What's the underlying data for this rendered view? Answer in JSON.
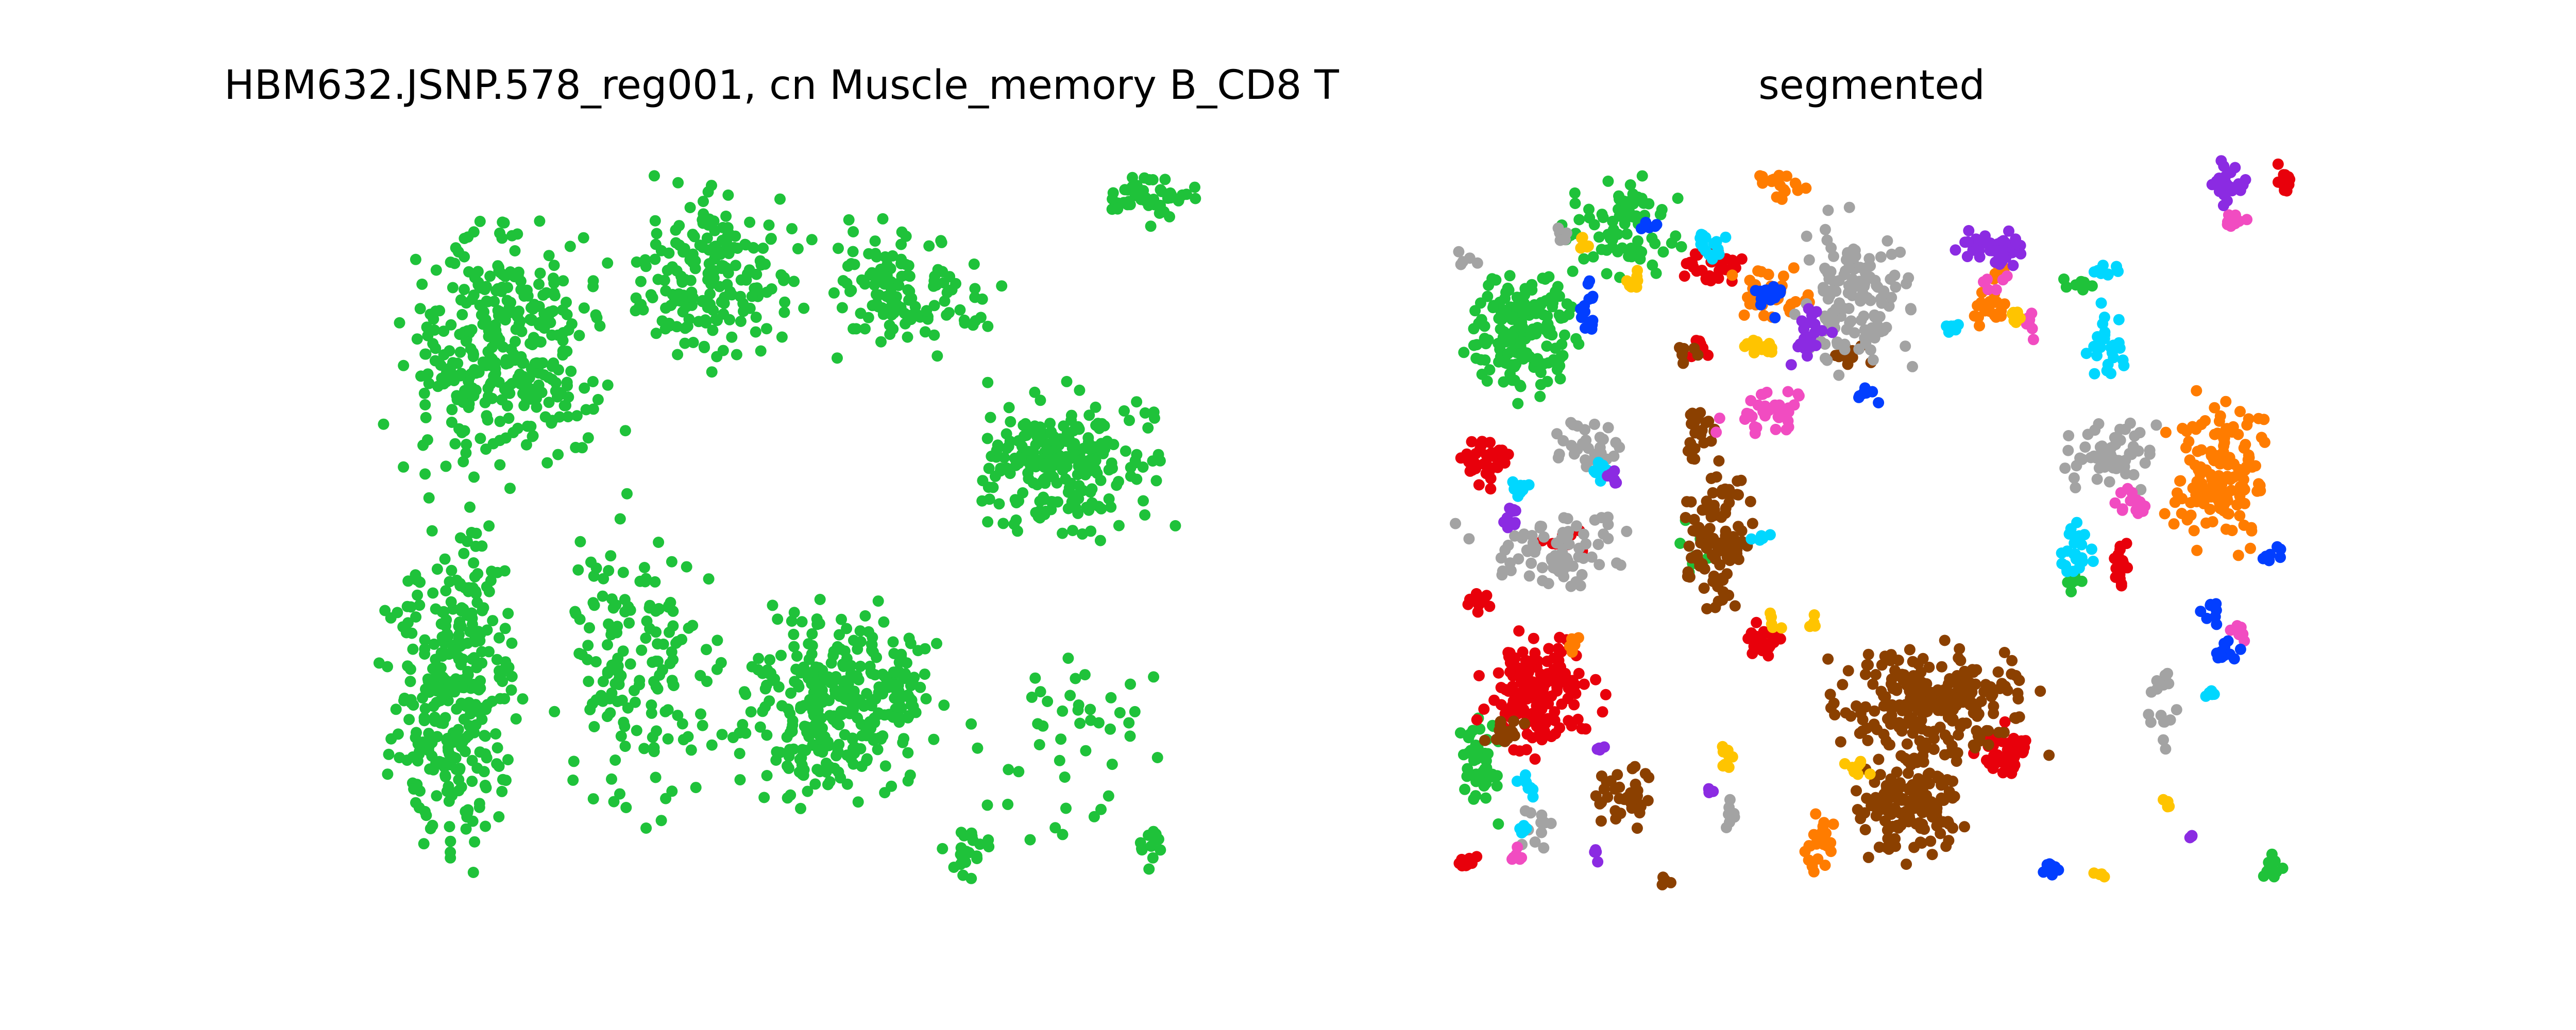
{
  "chart_data": [
    {
      "type": "scatter",
      "title": "HBM632.JSNP.578_reg001, cn Muscle_memory B_CD8 T",
      "xlabel": "",
      "ylabel": "",
      "grid": false,
      "axes_visible": false,
      "legend": "none",
      "point_color": "#1fc23a",
      "region_groups": [
        {
          "color": "#1fc23a",
          "regions": [
            {
              "x": 0.02,
              "y": 0.05,
              "w": 0.3,
              "h": 0.43,
              "n": 360
            },
            {
              "x": 0.3,
              "y": 0.02,
              "w": 0.25,
              "h": 0.3,
              "n": 190
            },
            {
              "x": 0.52,
              "y": 0.08,
              "w": 0.25,
              "h": 0.2,
              "n": 130
            },
            {
              "x": 0.7,
              "y": 0.29,
              "w": 0.27,
              "h": 0.26,
              "n": 230
            },
            {
              "x": 0.02,
              "y": 0.45,
              "w": 0.18,
              "h": 0.55,
              "n": 330
            },
            {
              "x": 0.42,
              "y": 0.58,
              "w": 0.3,
              "h": 0.33,
              "n": 330
            },
            {
              "x": 0.22,
              "y": 0.45,
              "w": 0.22,
              "h": 0.5,
              "n": 160
            },
            {
              "x": 0.7,
              "y": 0.58,
              "w": 0.3,
              "h": 0.4,
              "n": 45
            },
            {
              "x": 0.88,
              "y": 0.01,
              "w": 0.12,
              "h": 0.1,
              "n": 45
            },
            {
              "x": 0.68,
              "y": 0.9,
              "w": 0.1,
              "h": 0.1,
              "n": 22
            },
            {
              "x": 0.9,
              "y": 0.9,
              "w": 0.08,
              "h": 0.08,
              "n": 14
            }
          ]
        }
      ]
    },
    {
      "type": "scatter",
      "title": "segmented",
      "xlabel": "",
      "ylabel": "",
      "grid": false,
      "axes_visible": false,
      "legend": "none",
      "colors": [
        "#1fc23a",
        "#e8000b",
        "#8b4000",
        "#ff7c00",
        "#a3a3a3",
        "#00d7ff",
        "#f14cc1",
        "#8b2be2",
        "#ffc400",
        "#023eff"
      ],
      "region_groups": [
        {
          "color": "#1fc23a",
          "regions": [
            {
              "x": 0.0,
              "y": 0.13,
              "w": 0.16,
              "h": 0.22,
              "n": 170
            },
            {
              "x": 0.12,
              "y": 0.01,
              "w": 0.17,
              "h": 0.16,
              "n": 80
            },
            {
              "x": 0.0,
              "y": 0.75,
              "w": 0.06,
              "h": 0.18,
              "n": 45
            },
            {
              "x": 0.26,
              "y": 0.48,
              "w": 0.05,
              "h": 0.12,
              "n": 12
            },
            {
              "x": 0.72,
              "y": 0.16,
              "w": 0.05,
              "h": 0.03,
              "n": 8
            },
            {
              "x": 0.73,
              "y": 0.56,
              "w": 0.02,
              "h": 0.05,
              "n": 6
            },
            {
              "x": 0.95,
              "y": 0.95,
              "w": 0.05,
              "h": 0.04,
              "n": 10
            }
          ]
        },
        {
          "color": "#e8000b",
          "regions": [
            {
              "x": 0.02,
              "y": 0.64,
              "w": 0.16,
              "h": 0.18,
              "n": 160
            },
            {
              "x": 0.0,
              "y": 0.38,
              "w": 0.07,
              "h": 0.08,
              "n": 40
            },
            {
              "x": 0.0,
              "y": 0.59,
              "w": 0.05,
              "h": 0.04,
              "n": 12
            },
            {
              "x": 0.26,
              "y": 0.12,
              "w": 0.1,
              "h": 0.07,
              "n": 30
            },
            {
              "x": 0.34,
              "y": 0.63,
              "w": 0.06,
              "h": 0.07,
              "n": 25
            },
            {
              "x": 0.62,
              "y": 0.77,
              "w": 0.08,
              "h": 0.09,
              "n": 45
            },
            {
              "x": 0.98,
              "y": 0.0,
              "w": 0.02,
              "h": 0.07,
              "n": 15
            },
            {
              "x": 0.78,
              "y": 0.52,
              "w": 0.03,
              "h": 0.09,
              "n": 18
            },
            {
              "x": 0.1,
              "y": 0.5,
              "w": 0.06,
              "h": 0.05,
              "n": 12
            },
            {
              "x": 0.0,
              "y": 0.95,
              "w": 0.03,
              "h": 0.03,
              "n": 8
            },
            {
              "x": 0.27,
              "y": 0.24,
              "w": 0.04,
              "h": 0.04,
              "n": 8
            }
          ]
        },
        {
          "color": "#8b4000",
          "regions": [
            {
              "x": 0.42,
              "y": 0.65,
              "w": 0.3,
              "h": 0.19,
              "n": 230
            },
            {
              "x": 0.47,
              "y": 0.8,
              "w": 0.15,
              "h": 0.17,
              "n": 150
            },
            {
              "x": 0.26,
              "y": 0.4,
              "w": 0.1,
              "h": 0.25,
              "n": 100
            },
            {
              "x": 0.26,
              "y": 0.33,
              "w": 0.06,
              "h": 0.1,
              "n": 25
            },
            {
              "x": 0.16,
              "y": 0.82,
              "w": 0.09,
              "h": 0.1,
              "n": 35
            },
            {
              "x": 0.03,
              "y": 0.76,
              "w": 0.06,
              "h": 0.06,
              "n": 15
            },
            {
              "x": 0.44,
              "y": 0.25,
              "w": 0.06,
              "h": 0.05,
              "n": 12
            },
            {
              "x": 0.26,
              "y": 0.25,
              "w": 0.04,
              "h": 0.04,
              "n": 8
            },
            {
              "x": 0.24,
              "y": 0.98,
              "w": 0.02,
              "h": 0.02,
              "n": 4
            }
          ]
        },
        {
          "color": "#ff7c00",
          "regions": [
            {
              "x": 0.84,
              "y": 0.3,
              "w": 0.14,
              "h": 0.26,
              "n": 150
            },
            {
              "x": 0.33,
              "y": 0.13,
              "w": 0.1,
              "h": 0.1,
              "n": 40
            },
            {
              "x": 0.34,
              "y": 0.01,
              "w": 0.09,
              "h": 0.05,
              "n": 20
            },
            {
              "x": 0.41,
              "y": 0.88,
              "w": 0.05,
              "h": 0.1,
              "n": 25
            },
            {
              "x": 0.6,
              "y": 0.18,
              "w": 0.08,
              "h": 0.06,
              "n": 20
            },
            {
              "x": 0.12,
              "y": 0.65,
              "w": 0.04,
              "h": 0.04,
              "n": 8
            },
            {
              "x": 0.63,
              "y": 0.14,
              "w": 0.04,
              "h": 0.03,
              "n": 6
            }
          ]
        },
        {
          "color": "#a3a3a3",
          "regions": [
            {
              "x": 0.4,
              "y": 0.06,
              "w": 0.16,
              "h": 0.26,
              "n": 130
            },
            {
              "x": 0.0,
              "y": 0.48,
              "w": 0.22,
              "h": 0.12,
              "n": 80
            },
            {
              "x": 0.71,
              "y": 0.35,
              "w": 0.14,
              "h": 0.12,
              "n": 60
            },
            {
              "x": 0.1,
              "y": 0.35,
              "w": 0.12,
              "h": 0.09,
              "n": 30
            },
            {
              "x": 0.82,
              "y": 0.65,
              "w": 0.05,
              "h": 0.18,
              "n": 18
            },
            {
              "x": 0.07,
              "y": 0.88,
              "w": 0.06,
              "h": 0.08,
              "n": 12
            },
            {
              "x": 0.31,
              "y": 0.87,
              "w": 0.04,
              "h": 0.06,
              "n": 10
            },
            {
              "x": 0.0,
              "y": 0.12,
              "w": 0.03,
              "h": 0.03,
              "n": 5
            },
            {
              "x": 0.11,
              "y": 0.09,
              "w": 0.03,
              "h": 0.03,
              "n": 5
            }
          ]
        },
        {
          "color": "#00d7ff",
          "regions": [
            {
              "x": 0.75,
              "y": 0.2,
              "w": 0.06,
              "h": 0.12,
              "n": 25
            },
            {
              "x": 0.27,
              "y": 0.09,
              "w": 0.06,
              "h": 0.06,
              "n": 15
            },
            {
              "x": 0.71,
              "y": 0.48,
              "w": 0.06,
              "h": 0.12,
              "n": 25
            },
            {
              "x": 0.07,
              "y": 0.84,
              "w": 0.03,
              "h": 0.04,
              "n": 8
            },
            {
              "x": 0.06,
              "y": 0.44,
              "w": 0.04,
              "h": 0.03,
              "n": 8
            },
            {
              "x": 0.16,
              "y": 0.41,
              "w": 0.03,
              "h": 0.04,
              "n": 8
            },
            {
              "x": 0.35,
              "y": 0.51,
              "w": 0.03,
              "h": 0.02,
              "n": 5
            },
            {
              "x": 0.57,
              "y": 0.22,
              "w": 0.04,
              "h": 0.03,
              "n": 8
            },
            {
              "x": 0.76,
              "y": 0.14,
              "w": 0.04,
              "h": 0.03,
              "n": 8
            },
            {
              "x": 0.89,
              "y": 0.72,
              "w": 0.03,
              "h": 0.03,
              "n": 5
            },
            {
              "x": 0.07,
              "y": 0.9,
              "w": 0.02,
              "h": 0.03,
              "n": 5
            }
          ]
        },
        {
          "color": "#f14cc1",
          "regions": [
            {
              "x": 0.31,
              "y": 0.31,
              "w": 0.13,
              "h": 0.08,
              "n": 35
            },
            {
              "x": 0.78,
              "y": 0.44,
              "w": 0.06,
              "h": 0.06,
              "n": 15
            },
            {
              "x": 0.92,
              "y": 0.62,
              "w": 0.03,
              "h": 0.06,
              "n": 8
            },
            {
              "x": 0.67,
              "y": 0.2,
              "w": 0.03,
              "h": 0.06,
              "n": 8
            },
            {
              "x": 0.91,
              "y": 0.07,
              "w": 0.04,
              "h": 0.04,
              "n": 8
            },
            {
              "x": 0.06,
              "y": 0.94,
              "w": 0.03,
              "h": 0.03,
              "n": 6
            },
            {
              "x": 0.62,
              "y": 0.16,
              "w": 0.04,
              "h": 0.03,
              "n": 6
            }
          ]
        },
        {
          "color": "#8b2be2",
          "regions": [
            {
              "x": 0.59,
              "y": 0.08,
              "w": 0.12,
              "h": 0.08,
              "n": 40
            },
            {
              "x": 0.89,
              "y": 0.0,
              "w": 0.06,
              "h": 0.07,
              "n": 25
            },
            {
              "x": 0.39,
              "y": 0.2,
              "w": 0.06,
              "h": 0.1,
              "n": 20
            },
            {
              "x": 0.05,
              "y": 0.46,
              "w": 0.03,
              "h": 0.06,
              "n": 10
            },
            {
              "x": 0.17,
              "y": 0.42,
              "w": 0.03,
              "h": 0.03,
              "n": 6
            },
            {
              "x": 0.29,
              "y": 0.85,
              "w": 0.02,
              "h": 0.03,
              "n": 4
            },
            {
              "x": 0.16,
              "y": 0.8,
              "w": 0.03,
              "h": 0.02,
              "n": 4
            },
            {
              "x": 0.16,
              "y": 0.94,
              "w": 0.02,
              "h": 0.03,
              "n": 4
            },
            {
              "x": 0.87,
              "y": 0.92,
              "w": 0.02,
              "h": 0.02,
              "n": 3
            }
          ]
        },
        {
          "color": "#ffc400",
          "regions": [
            {
              "x": 0.33,
              "y": 0.24,
              "w": 0.06,
              "h": 0.04,
              "n": 15
            },
            {
              "x": 0.2,
              "y": 0.14,
              "w": 0.03,
              "h": 0.05,
              "n": 8
            },
            {
              "x": 0.65,
              "y": 0.2,
              "w": 0.04,
              "h": 0.03,
              "n": 8
            },
            {
              "x": 0.3,
              "y": 0.8,
              "w": 0.04,
              "h": 0.05,
              "n": 8
            },
            {
              "x": 0.46,
              "y": 0.82,
              "w": 0.04,
              "h": 0.03,
              "n": 8
            },
            {
              "x": 0.14,
              "y": 0.1,
              "w": 0.03,
              "h": 0.03,
              "n": 5
            },
            {
              "x": 0.36,
              "y": 0.62,
              "w": 0.03,
              "h": 0.04,
              "n": 5
            },
            {
              "x": 0.84,
              "y": 0.87,
              "w": 0.02,
              "h": 0.03,
              "n": 4
            },
            {
              "x": 0.42,
              "y": 0.62,
              "w": 0.02,
              "h": 0.03,
              "n": 4
            },
            {
              "x": 0.76,
              "y": 0.97,
              "w": 0.02,
              "h": 0.02,
              "n": 4
            }
          ]
        },
        {
          "color": "#023eff",
          "regions": [
            {
              "x": 0.14,
              "y": 0.16,
              "w": 0.04,
              "h": 0.08,
              "n": 14
            },
            {
              "x": 0.35,
              "y": 0.15,
              "w": 0.05,
              "h": 0.08,
              "n": 14
            },
            {
              "x": 0.68,
              "y": 0.96,
              "w": 0.05,
              "h": 0.03,
              "n": 10
            },
            {
              "x": 0.89,
              "y": 0.66,
              "w": 0.06,
              "h": 0.04,
              "n": 12
            },
            {
              "x": 0.48,
              "y": 0.31,
              "w": 0.03,
              "h": 0.03,
              "n": 8
            },
            {
              "x": 0.88,
              "y": 0.6,
              "w": 0.04,
              "h": 0.04,
              "n": 8
            },
            {
              "x": 0.96,
              "y": 0.52,
              "w": 0.03,
              "h": 0.04,
              "n": 8
            },
            {
              "x": 0.22,
              "y": 0.08,
              "w": 0.03,
              "h": 0.02,
              "n": 5
            }
          ]
        }
      ]
    }
  ]
}
